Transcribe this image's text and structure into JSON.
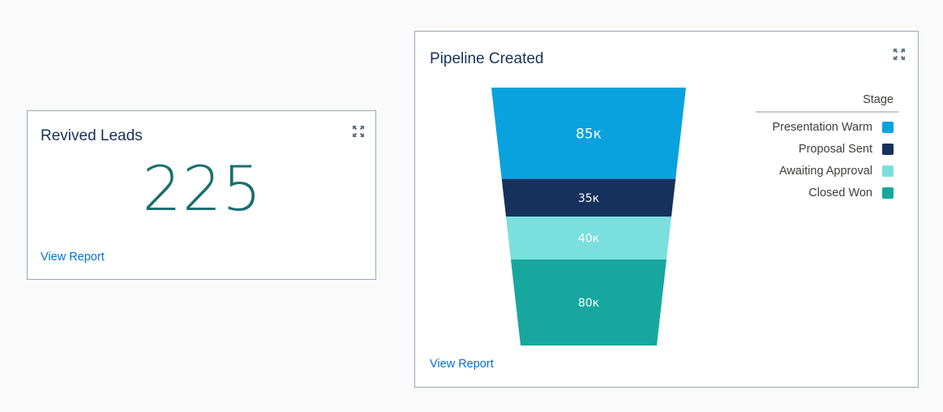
{
  "revived_leads": {
    "title": "Revived Leads",
    "value": "225",
    "view_report": "View Report",
    "expand_icon": "expand-icon"
  },
  "pipeline": {
    "title": "Pipeline Created",
    "view_report": "View Report",
    "expand_icon": "expand-icon",
    "legend": {
      "title": "Stage",
      "items": [
        {
          "label": "Presentation Warm",
          "color": "#09a2df"
        },
        {
          "label": "Proposal Sent",
          "color": "#16325c"
        },
        {
          "label": "Awaiting Approval",
          "color": "#7adfdd"
        },
        {
          "label": "Closed Won",
          "color": "#17a79e"
        }
      ]
    }
  },
  "chart_data": {
    "type": "funnel",
    "categories": [
      "Presentation Warm",
      "Proposal Sent",
      "Awaiting Approval",
      "Closed Won"
    ],
    "values": [
      85000,
      35000,
      40000,
      80000
    ],
    "labels": [
      "85к",
      "35к",
      "40к",
      "80к"
    ],
    "colors": [
      "#09a2df",
      "#16325c",
      "#7adfdd",
      "#17a79e"
    ],
    "label_colors": [
      "#ffffff",
      "#ffffff",
      "#ffffff",
      "#ffffff"
    ],
    "title": "Pipeline Created",
    "legend_title": "Stage",
    "legend_position": "right"
  }
}
